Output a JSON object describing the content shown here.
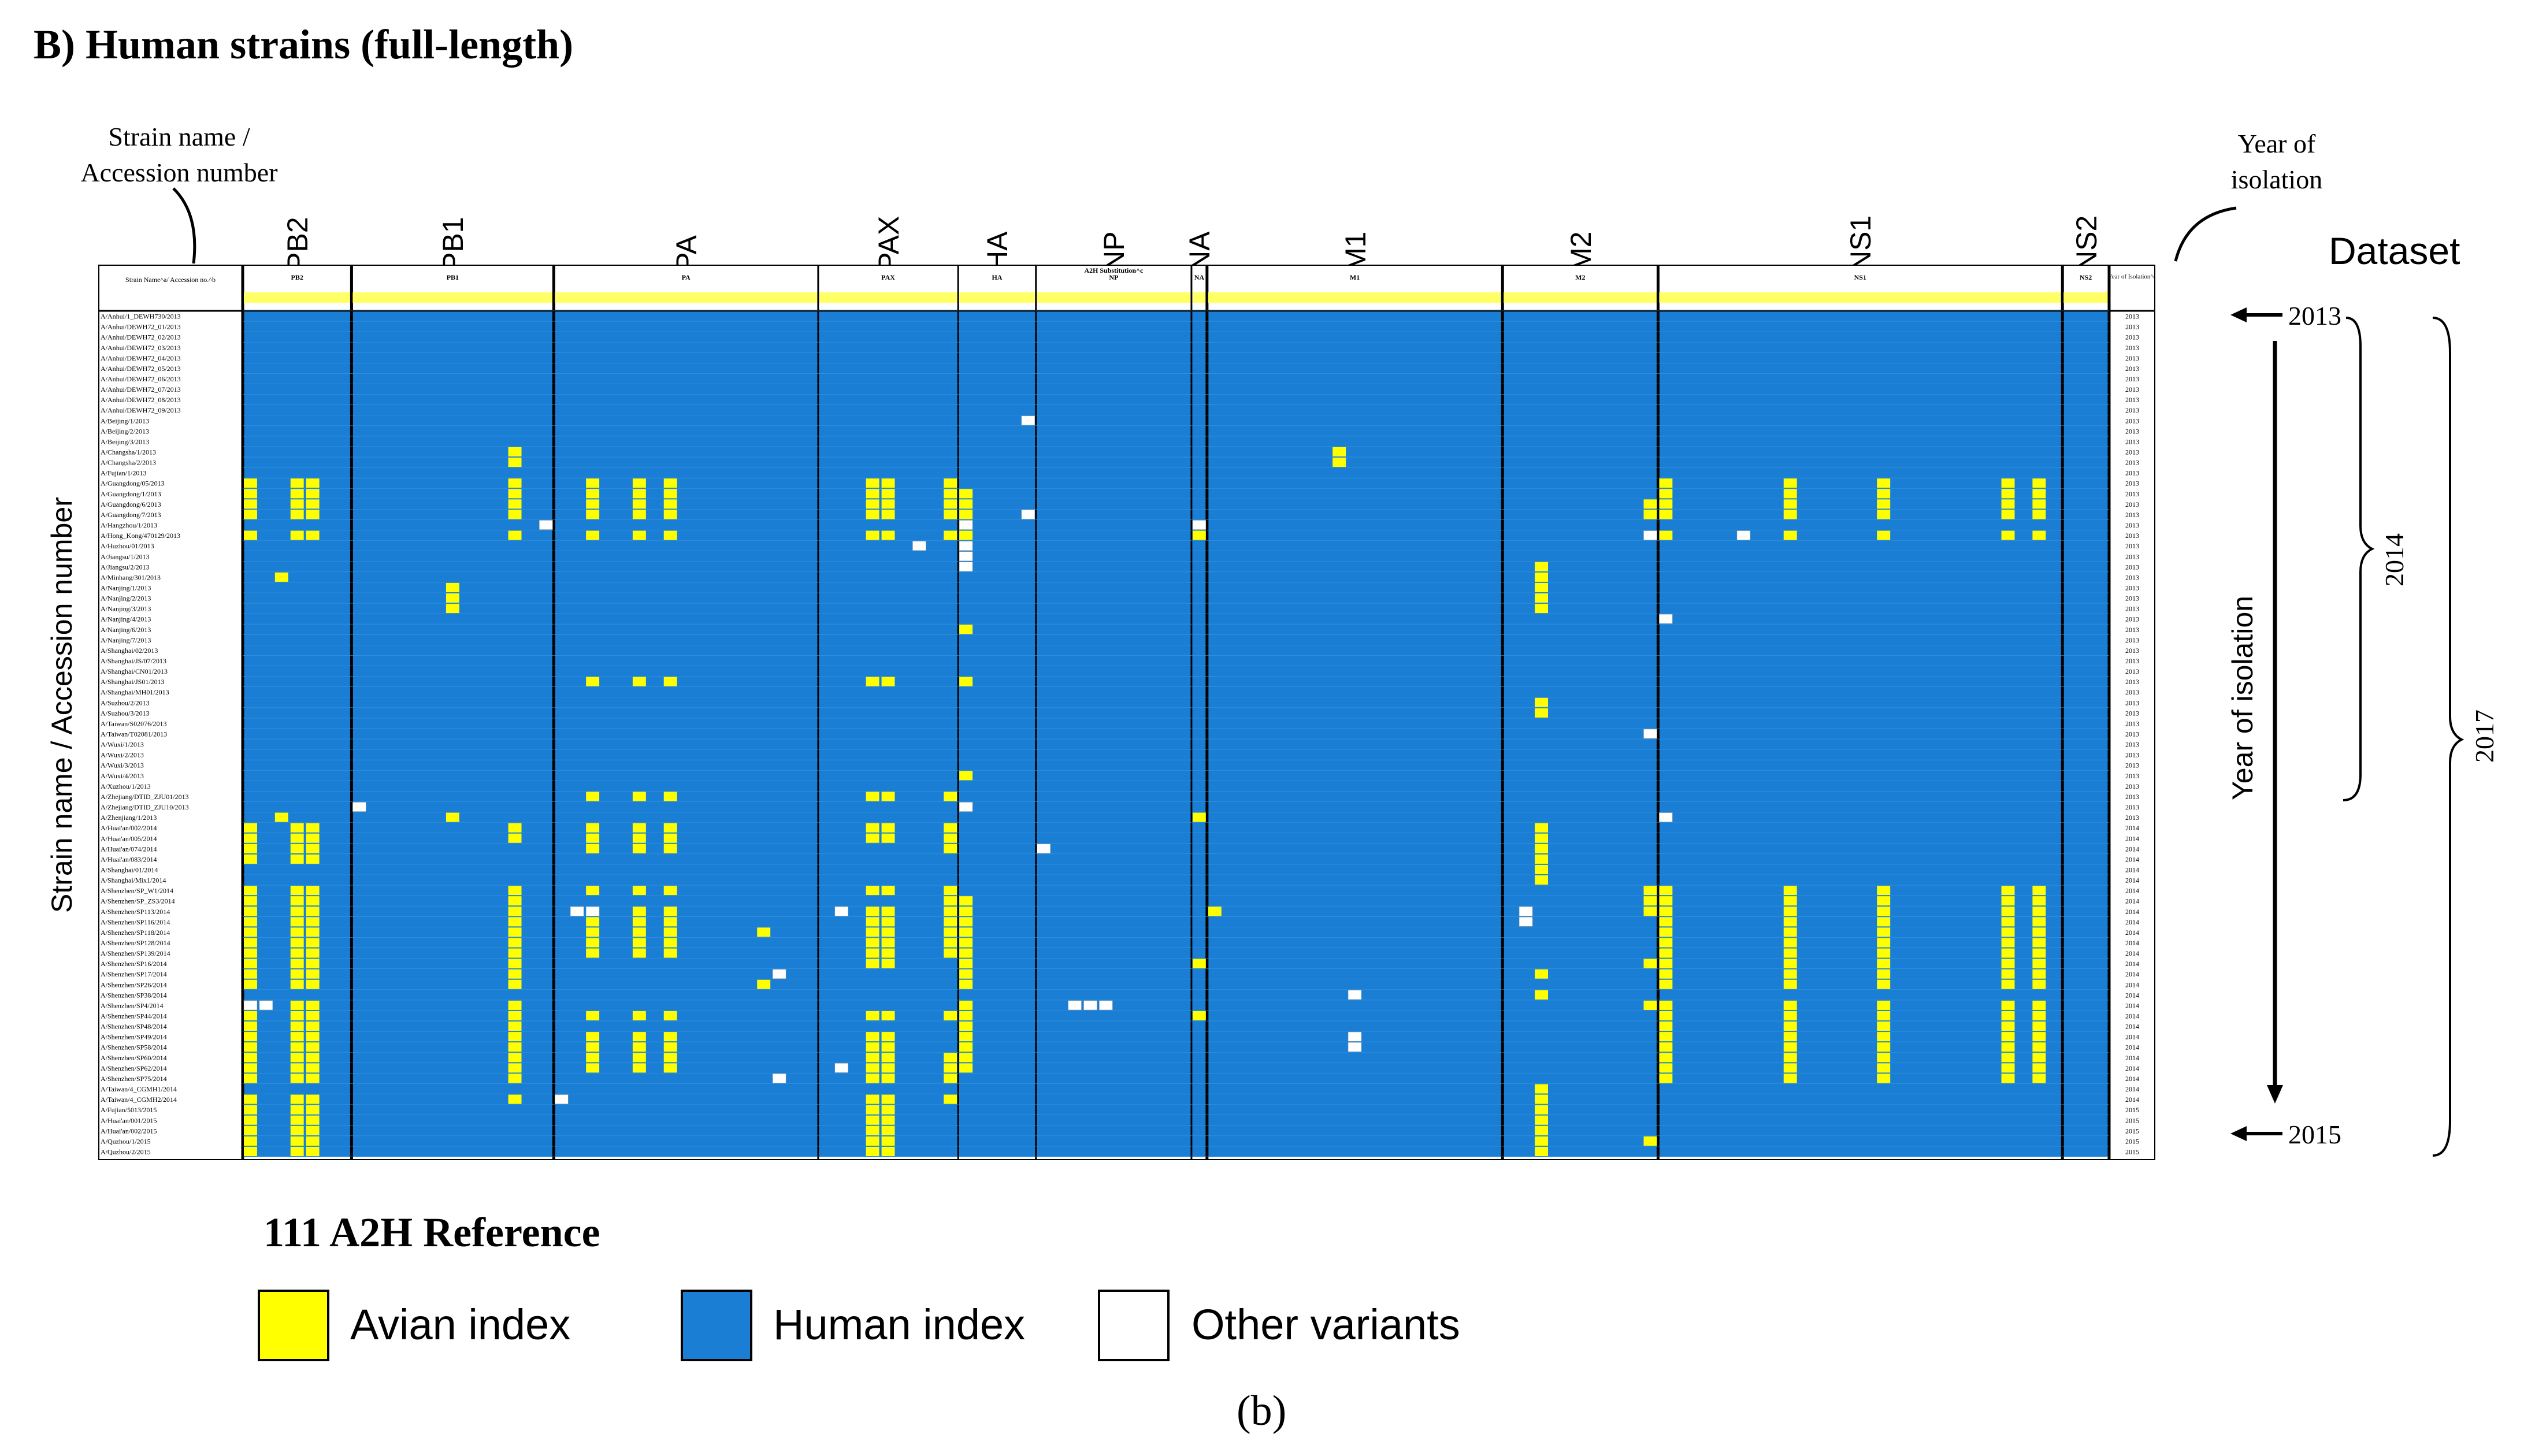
{
  "title": "B) Human strains (full-length)",
  "header_note_left": [
    "Strain name /",
    "Accession number"
  ],
  "header_note_right": [
    "Year of",
    "isolation"
  ],
  "dataset_label": "Dataset",
  "y_axis_label": "Strain name / Accession number",
  "year_axis_label": "Year of isolation",
  "table_header": {
    "first_col": "Strain Name^a/ Accession no.^b",
    "substitution_label": "A2H Substitution^c",
    "year_col": "Year of Isolation^d"
  },
  "segments": [
    {
      "name": "PB2",
      "cols": 7
    },
    {
      "name": "PB1",
      "cols": 13
    },
    {
      "name": "PA",
      "cols": 17
    },
    {
      "name": "PAX",
      "cols": 9
    },
    {
      "name": "HA",
      "cols": 5
    },
    {
      "name": "NP",
      "cols": 10
    },
    {
      "name": "NA",
      "cols": 1
    },
    {
      "name": "M1",
      "cols": 19
    },
    {
      "name": "M2",
      "cols": 10
    },
    {
      "name": "NS1",
      "cols": 26
    },
    {
      "name": "NS2",
      "cols": 3
    }
  ],
  "strains": [
    "A/Anhui/1_DEWH730/2013",
    "A/Anhui/DEWH72_01/2013",
    "A/Anhui/DEWH72_02/2013",
    "A/Anhui/DEWH72_03/2013",
    "A/Anhui/DEWH72_04/2013",
    "A/Anhui/DEWH72_05/2013",
    "A/Anhui/DEWH72_06/2013",
    "A/Anhui/DEWH72_07/2013",
    "A/Anhui/DEWH72_08/2013",
    "A/Anhui/DEWH72_09/2013",
    "A/Beijing/1/2013",
    "A/Beijing/2/2013",
    "A/Beijing/3/2013",
    "A/Changsha/1/2013",
    "A/Changsha/2/2013",
    "A/Fujian/1/2013",
    "A/Guangdong/05/2013",
    "A/Guangdong/1/2013",
    "A/Guangdong/6/2013",
    "A/Guangdong/7/2013",
    "A/Hangzhou/1/2013",
    "A/Hong_Kong/470129/2013",
    "A/Huzhou/01/2013",
    "A/Jiangsu/1/2013",
    "A/Jiangsu/2/2013",
    "A/Minhang/301/2013",
    "A/Nanjing/1/2013",
    "A/Nanjing/2/2013",
    "A/Nanjing/3/2013",
    "A/Nanjing/4/2013",
    "A/Nanjing/6/2013",
    "A/Nanjing/7/2013",
    "A/Shanghai/02/2013",
    "A/Shanghai/JS/07/2013",
    "A/Shanghai/CN01/2013",
    "A/Shanghai/JS01/2013",
    "A/Shanghai/MH01/2013",
    "A/Suzhou/2/2013",
    "A/Suzhou/3/2013",
    "A/Taiwan/S02076/2013",
    "A/Taiwan/T02081/2013",
    "A/Wuxi/1/2013",
    "A/Wuxi/2/2013",
    "A/Wuxi/3/2013",
    "A/Wuxi/4/2013",
    "A/Xuzhou/1/2013",
    "A/Zhejiang/DTID_ZJU01/2013",
    "A/Zhejiang/DTID_ZJU10/2013",
    "A/Zhenjiang/1/2013",
    "A/Huai'an/002/2014",
    "A/Huai'an/005/2014",
    "A/Huai'an/074/2014",
    "A/Huai'an/083/2014",
    "A/Shanghai/01/2014",
    "A/Shanghai/Mix1/2014",
    "A/Shenzhen/SP_W1/2014",
    "A/Shenzhen/SP_ZS3/2014",
    "A/Shenzhen/SP113/2014",
    "A/Shenzhen/SP116/2014",
    "A/Shenzhen/SP118/2014",
    "A/Shenzhen/SP128/2014",
    "A/Shenzhen/SP139/2014",
    "A/Shenzhen/SP16/2014",
    "A/Shenzhen/SP17/2014",
    "A/Shenzhen/SP26/2014",
    "A/Shenzhen/SP38/2014",
    "A/Shenzhen/SP4/2014",
    "A/Shenzhen/SP44/2014",
    "A/Shenzhen/SP48/2014",
    "A/Shenzhen/SP49/2014",
    "A/Shenzhen/SP58/2014",
    "A/Shenzhen/SP60/2014",
    "A/Shenzhen/SP62/2014",
    "A/Shenzhen/SP75/2014",
    "A/Taiwan/4_CGMH1/2014",
    "A/Taiwan/4_CGMH2/2014",
    "A/Fujian/5013/2015",
    "A/Huai'an/001/2015",
    "A/Huai'an/002/2015",
    "A/Quzhou/1/2015",
    "A/Quzhou/2/2015"
  ],
  "row_years": [
    "2013",
    "2013",
    "2013",
    "2013",
    "2013",
    "2013",
    "2013",
    "2013",
    "2013",
    "2013",
    "2013",
    "2013",
    "2013",
    "2013",
    "2013",
    "2013",
    "2013",
    "2013",
    "2013",
    "2013",
    "2013",
    "2013",
    "2013",
    "2013",
    "2013",
    "2013",
    "2013",
    "2013",
    "2013",
    "2013",
    "2013",
    "2013",
    "2013",
    "2013",
    "2013",
    "2013",
    "2013",
    "2013",
    "2013",
    "2013",
    "2013",
    "2013",
    "2013",
    "2013",
    "2013",
    "2013",
    "2013",
    "2013",
    "2013",
    "2014",
    "2014",
    "2014",
    "2014",
    "2014",
    "2014",
    "2014",
    "2014",
    "2014",
    "2014",
    "2014",
    "2014",
    "2014",
    "2014",
    "2014",
    "2014",
    "2014",
    "2014",
    "2014",
    "2014",
    "2014",
    "2014",
    "2014",
    "2014",
    "2014",
    "2014",
    "2014",
    "2015",
    "2015",
    "2015",
    "2015",
    "2015"
  ],
  "year_marks": {
    "start": "2013",
    "end": "2015"
  },
  "dataset_years": {
    "inner": "2014",
    "outer": "2017"
  },
  "legend": {
    "title": "111 A2H Reference",
    "items": [
      {
        "label": "Avian index",
        "color": "#ffff00"
      },
      {
        "label": "Human index",
        "color": "#1a7fd4"
      },
      {
        "label": "Other variants",
        "color": "#ffffff"
      }
    ]
  },
  "caption": "(b)",
  "colors": {
    "human": "#1a7fd4",
    "avian": "#ffff00",
    "other": "#ffffff",
    "arrow": "#000000"
  }
}
